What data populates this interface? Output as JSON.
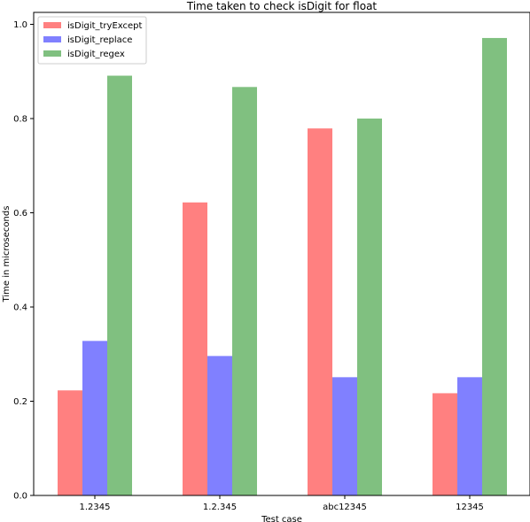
{
  "chart_data": {
    "type": "bar",
    "title": "Time taken to check isDigit for float",
    "xlabel": "Test case",
    "ylabel": "Time in microseconds",
    "categories": [
      "1.2345",
      "1.2.345",
      "abc12345",
      "12345"
    ],
    "series": [
      {
        "name": "isDigit_tryExcept",
        "color": "#ff8080",
        "values": [
          0.223,
          0.622,
          0.779,
          0.217
        ]
      },
      {
        "name": "isDigit_replace",
        "color": "#8080ff",
        "values": [
          0.328,
          0.296,
          0.251,
          0.251
        ]
      },
      {
        "name": "isDigit_regex",
        "color": "#80c080",
        "values": [
          0.891,
          0.867,
          0.8,
          0.971
        ]
      }
    ],
    "yticks": [
      0.0,
      0.2,
      0.4,
      0.6,
      0.8,
      1.0
    ],
    "ytick_labels": [
      "0.0",
      "0.2",
      "0.4",
      "0.6",
      "0.8",
      "1.0"
    ],
    "ylim": [
      0,
      1.0
    ],
    "grid": false,
    "legend_position": "top-left"
  }
}
